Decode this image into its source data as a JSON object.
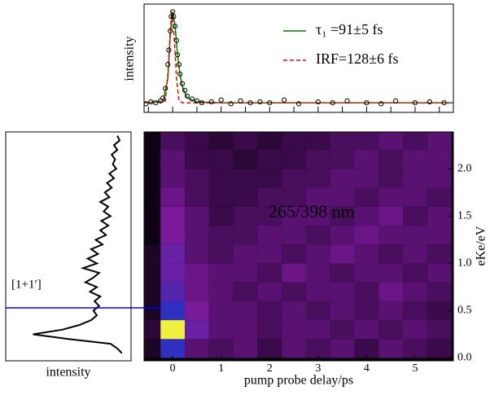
{
  "chart_data": [
    {
      "type": "line",
      "ylabel": "intensity",
      "legend": "upper right",
      "xlim": [
        -0.59,
        5.79
      ],
      "ylim": [
        -0.05,
        1.08
      ],
      "xticks": [
        -0.5,
        0,
        0.5,
        1,
        1.5,
        2,
        2.5,
        3,
        3.5,
        4,
        4.5,
        5,
        5.5
      ],
      "series": [
        {
          "name": "τ₁ =91±5 fs",
          "color": "#008000",
          "linestyle": "solid",
          "x": [
            -0.59,
            -0.2,
            -0.1,
            -0.05,
            0,
            0.05,
            0.1,
            0.15,
            0.2,
            0.3,
            0.5,
            1,
            5.79
          ],
          "values": [
            0.05,
            0.06,
            0.3,
            0.75,
            1.0,
            0.85,
            0.55,
            0.35,
            0.22,
            0.1,
            0.06,
            0.05,
            0.05
          ]
        },
        {
          "name": "IRF=128±6 fs",
          "color": "#ff0000",
          "linestyle": "dashed",
          "x": [
            -0.59,
            -0.15,
            -0.1,
            -0.05,
            -0.02,
            0.03,
            0.08,
            0.13,
            0.2,
            5.79
          ],
          "values": [
            0.05,
            0.07,
            0.35,
            0.8,
            1.0,
            0.75,
            0.3,
            0.07,
            0.05,
            0.05
          ]
        },
        {
          "color": "#000000",
          "marker": "circle",
          "x": [
            -0.55,
            -0.45,
            -0.35,
            -0.25,
            -0.2,
            -0.15,
            -0.1,
            -0.08,
            -0.05,
            -0.03,
            0,
            0.02,
            0.05,
            0.08,
            0.1,
            0.13,
            0.15,
            0.2,
            0.25,
            0.3,
            0.4,
            0.5,
            0.6,
            0.8,
            1.0,
            1.2,
            1.4,
            1.6,
            1.8,
            2.0,
            2.3,
            2.6,
            3.0,
            3.3,
            3.6,
            4.0,
            4.3,
            4.6,
            5.0,
            5.3,
            5.6
          ],
          "values": [
            0.04,
            0.06,
            0.05,
            0.07,
            0.1,
            0.2,
            0.45,
            0.6,
            0.8,
            0.95,
            1.0,
            0.95,
            0.85,
            0.7,
            0.55,
            0.45,
            0.35,
            0.25,
            0.18,
            0.12,
            0.09,
            0.07,
            0.05,
            0.06,
            0.08,
            0.04,
            0.07,
            0.05,
            0.06,
            0.05,
            0.08,
            0.04,
            0.06,
            0.05,
            0.07,
            0.05,
            0.04,
            0.07,
            0.05,
            0.06,
            0.05
          ]
        }
      ]
    },
    {
      "type": "spectrum",
      "xlabel": "intensity",
      "annotation": "[1+1′]",
      "hline": 0.53,
      "hline_color": "#0000ff",
      "color": "#000000",
      "xlim": [
        1.1,
        0
      ],
      "ylim": [
        -0.03,
        2.39
      ],
      "y": [
        0.05,
        0.1,
        0.15,
        0.2,
        0.25,
        0.3,
        0.35,
        0.4,
        0.45,
        0.5,
        0.55,
        0.6,
        0.65,
        0.7,
        0.75,
        0.8,
        0.85,
        0.9,
        0.95,
        1.0,
        1.05,
        1.1,
        1.15,
        1.2,
        1.25,
        1.3,
        1.35,
        1.4,
        1.45,
        1.5,
        1.55,
        1.6,
        1.65,
        1.7,
        1.75,
        1.8,
        1.85,
        1.9,
        1.95,
        2.0,
        2.05,
        2.1,
        2.15,
        2.2,
        2.25,
        2.3,
        2.35
      ],
      "values": [
        0.08,
        0.12,
        0.18,
        0.55,
        0.86,
        0.6,
        0.45,
        0.35,
        0.3,
        0.33,
        0.28,
        0.32,
        0.27,
        0.36,
        0.3,
        0.4,
        0.33,
        0.28,
        0.42,
        0.3,
        0.38,
        0.29,
        0.35,
        0.25,
        0.31,
        0.22,
        0.27,
        0.2,
        0.26,
        0.18,
        0.24,
        0.2,
        0.27,
        0.19,
        0.23,
        0.17,
        0.21,
        0.15,
        0.19,
        0.13,
        0.16,
        0.14,
        0.17,
        0.12,
        0.15,
        0.1,
        0.12
      ]
    },
    {
      "type": "heatmap",
      "xlabel": "pump probe delay/ps",
      "ylabel": "eKe/eV",
      "annotation": "265/398 nm",
      "xlim": [
        -0.59,
        5.79
      ],
      "ylim": [
        -0.03,
        2.39
      ],
      "zlim": [
        0,
        1
      ],
      "colormap": [
        "#000000",
        "#3a0a4a",
        "#7a1a9a",
        "#3030c0",
        "#30c060",
        "#f0f040"
      ],
      "xticks": [
        0,
        1,
        2,
        3,
        4,
        5
      ],
      "yticks": [
        {
          "value": 0,
          "label": "0.0"
        },
        {
          "value": 0.5,
          "label": "0.5"
        },
        {
          "value": 1,
          "label": "1.0"
        },
        {
          "value": 1.5,
          "label": "1.5"
        },
        {
          "value": 2,
          "label": "2.0"
        }
      ],
      "x": [
        -0.5,
        0,
        0.5,
        1,
        1.5,
        2,
        2.5,
        3,
        3.5,
        4,
        4.5,
        5,
        5.5
      ],
      "y": [
        0.1,
        0.3,
        0.5,
        0.7,
        0.9,
        1.1,
        1.3,
        1.5,
        1.7,
        1.9,
        2.1,
        2.3
      ],
      "z": [
        [
          0.1,
          0.6,
          0.3,
          0.25,
          0.3,
          0.2,
          0.3,
          0.25,
          0.3,
          0.2,
          0.3,
          0.25,
          0.2
        ],
        [
          0.15,
          1.0,
          0.45,
          0.3,
          0.3,
          0.25,
          0.3,
          0.3,
          0.25,
          0.3,
          0.25,
          0.3,
          0.25
        ],
        [
          0.1,
          0.6,
          0.4,
          0.3,
          0.3,
          0.25,
          0.3,
          0.25,
          0.3,
          0.25,
          0.3,
          0.25,
          0.2
        ],
        [
          0.1,
          0.5,
          0.35,
          0.3,
          0.25,
          0.3,
          0.25,
          0.3,
          0.3,
          0.25,
          0.35,
          0.3,
          0.25
        ],
        [
          0.1,
          0.45,
          0.35,
          0.3,
          0.3,
          0.25,
          0.35,
          0.3,
          0.25,
          0.3,
          0.3,
          0.25,
          0.3
        ],
        [
          0.1,
          0.45,
          0.3,
          0.25,
          0.3,
          0.3,
          0.25,
          0.3,
          0.35,
          0.3,
          0.25,
          0.3,
          0.25
        ],
        [
          0.05,
          0.4,
          0.3,
          0.25,
          0.25,
          0.3,
          0.3,
          0.25,
          0.3,
          0.35,
          0.3,
          0.3,
          0.3
        ],
        [
          0.05,
          0.4,
          0.3,
          0.2,
          0.25,
          0.25,
          0.3,
          0.3,
          0.25,
          0.3,
          0.35,
          0.25,
          0.3
        ],
        [
          0.05,
          0.35,
          0.25,
          0.2,
          0.2,
          0.25,
          0.25,
          0.3,
          0.3,
          0.25,
          0.3,
          0.3,
          0.25
        ],
        [
          0.05,
          0.3,
          0.25,
          0.2,
          0.2,
          0.2,
          0.25,
          0.25,
          0.3,
          0.3,
          0.25,
          0.3,
          0.3
        ],
        [
          0.05,
          0.3,
          0.2,
          0.2,
          0.15,
          0.2,
          0.2,
          0.25,
          0.25,
          0.3,
          0.25,
          0.3,
          0.3
        ],
        [
          0.05,
          0.25,
          0.2,
          0.15,
          0.2,
          0.15,
          0.2,
          0.2,
          0.25,
          0.25,
          0.3,
          0.25,
          0.3
        ]
      ]
    }
  ]
}
